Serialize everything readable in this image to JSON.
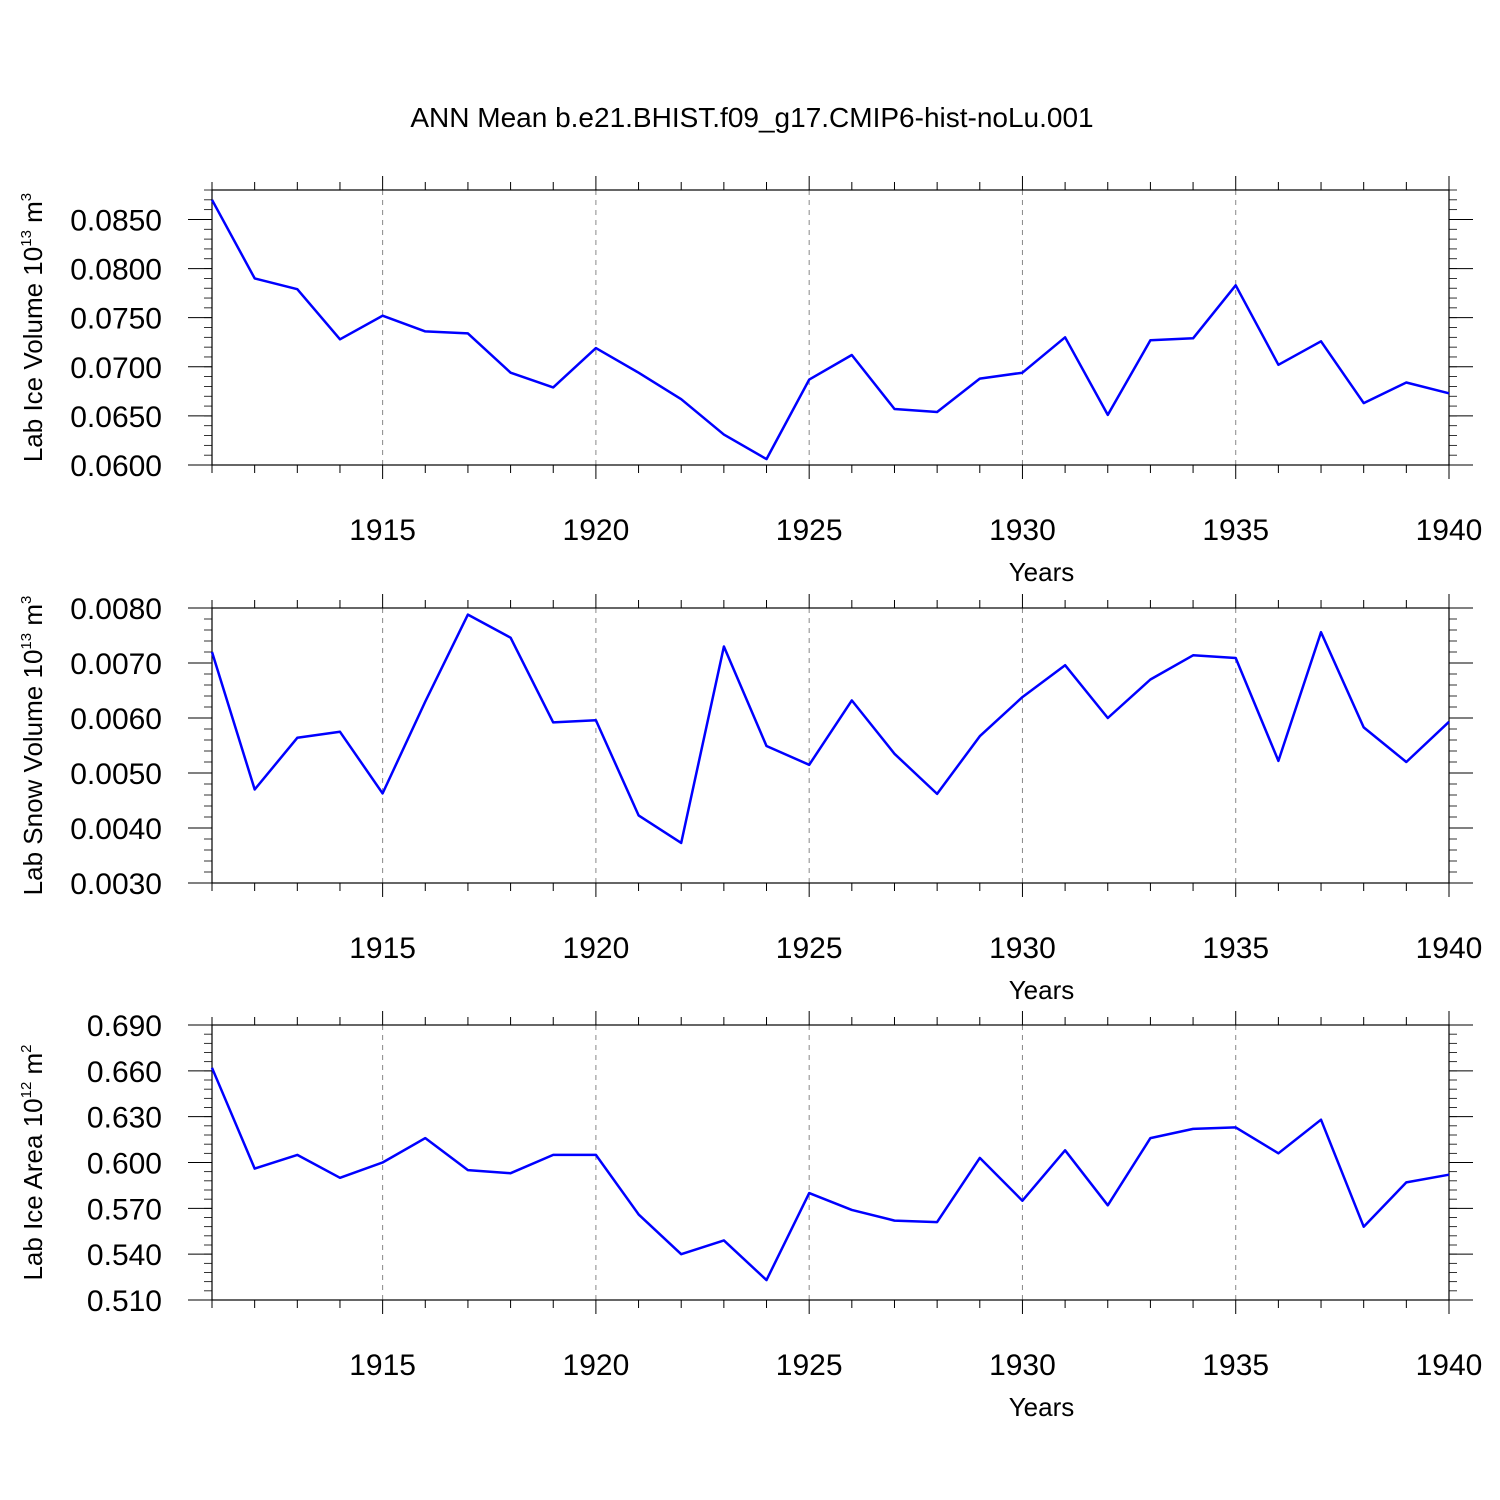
{
  "title": "ANN Mean b.e21.BHIST.f09_g17.CMIP6-hist-noLu.001",
  "colors": {
    "line": "#0000ff",
    "axis": "#000000",
    "grid": "#888888"
  },
  "chart_data": [
    {
      "type": "line",
      "xlabel": "Years",
      "ylabel": {
        "text": "Lab Ice Volume 10",
        "sup": "13",
        "unit": "m",
        "unit_sup": "3"
      },
      "x": [
        1911,
        1912,
        1913,
        1914,
        1915,
        1916,
        1917,
        1918,
        1919,
        1920,
        1921,
        1922,
        1923,
        1924,
        1925,
        1926,
        1927,
        1928,
        1929,
        1930,
        1931,
        1932,
        1933,
        1934,
        1935,
        1936,
        1937,
        1938,
        1939,
        1940
      ],
      "values": [
        0.087,
        0.079,
        0.0779,
        0.0728,
        0.0752,
        0.0736,
        0.0734,
        0.0694,
        0.0679,
        0.0719,
        0.0694,
        0.0667,
        0.0631,
        0.0606,
        0.0687,
        0.0712,
        0.0657,
        0.0654,
        0.0688,
        0.0694,
        0.073,
        0.0651,
        0.0727,
        0.0729,
        0.0783,
        0.0702,
        0.0726,
        0.0663,
        0.0684,
        0.0673
      ],
      "xlim": [
        1911,
        1940
      ],
      "ylim": [
        0.06,
        0.088
      ],
      "x_ticks": [
        1915,
        1920,
        1925,
        1930,
        1935,
        1940
      ],
      "y_ticks": [
        0.06,
        0.065,
        0.07,
        0.075,
        0.08,
        0.085
      ],
      "y_tick_labels": [
        "0.0600",
        "0.0650",
        "0.0700",
        "0.0750",
        "0.0800",
        "0.0850"
      ],
      "y_minor_step": 0.001,
      "vertical_grid": true
    },
    {
      "type": "line",
      "xlabel": "Years",
      "ylabel": {
        "text": "Lab Snow Volume 10",
        "sup": "13",
        "unit": "m",
        "unit_sup": "3"
      },
      "x": [
        1911,
        1912,
        1913,
        1914,
        1915,
        1916,
        1917,
        1918,
        1919,
        1920,
        1921,
        1922,
        1923,
        1924,
        1925,
        1926,
        1927,
        1928,
        1929,
        1930,
        1931,
        1932,
        1933,
        1934,
        1935,
        1936,
        1937,
        1938,
        1939,
        1940
      ],
      "values": [
        0.0072,
        0.0047,
        0.00564,
        0.00575,
        0.00463,
        0.0063,
        0.00788,
        0.00746,
        0.00592,
        0.00596,
        0.00423,
        0.00373,
        0.0073,
        0.00549,
        0.00515,
        0.00632,
        0.00535,
        0.00462,
        0.00567,
        0.00638,
        0.00696,
        0.006,
        0.0067,
        0.00714,
        0.00709,
        0.00522,
        0.00756,
        0.00583,
        0.0052,
        0.00593
      ],
      "xlim": [
        1911,
        1940
      ],
      "ylim": [
        0.003,
        0.008
      ],
      "x_ticks": [
        1915,
        1920,
        1925,
        1930,
        1935,
        1940
      ],
      "y_ticks": [
        0.003,
        0.004,
        0.005,
        0.006,
        0.007,
        0.008
      ],
      "y_tick_labels": [
        "0.0030",
        "0.0040",
        "0.0050",
        "0.0060",
        "0.0070",
        "0.0080"
      ],
      "y_minor_step": 0.0002,
      "vertical_grid": true
    },
    {
      "type": "line",
      "xlabel": "Years",
      "ylabel": {
        "text": "Lab Ice Area 10",
        "sup": "12",
        "unit": "m",
        "unit_sup": "2"
      },
      "x": [
        1911,
        1912,
        1913,
        1914,
        1915,
        1916,
        1917,
        1918,
        1919,
        1920,
        1921,
        1922,
        1923,
        1924,
        1925,
        1926,
        1927,
        1928,
        1929,
        1930,
        1931,
        1932,
        1933,
        1934,
        1935,
        1936,
        1937,
        1938,
        1939,
        1940
      ],
      "values": [
        0.662,
        0.596,
        0.605,
        0.59,
        0.6,
        0.616,
        0.595,
        0.593,
        0.605,
        0.605,
        0.566,
        0.54,
        0.549,
        0.523,
        0.58,
        0.569,
        0.562,
        0.561,
        0.603,
        0.575,
        0.608,
        0.572,
        0.616,
        0.622,
        0.623,
        0.606,
        0.628,
        0.558,
        0.587,
        0.592
      ],
      "xlim": [
        1911,
        1940
      ],
      "ylim": [
        0.51,
        0.69
      ],
      "x_ticks": [
        1915,
        1920,
        1925,
        1930,
        1935,
        1940
      ],
      "y_ticks": [
        0.51,
        0.54,
        0.57,
        0.6,
        0.63,
        0.66,
        0.69
      ],
      "y_tick_labels": [
        "0.510",
        "0.540",
        "0.570",
        "0.600",
        "0.630",
        "0.660",
        "0.690"
      ],
      "y_minor_step": 0.006,
      "vertical_grid": true
    }
  ]
}
